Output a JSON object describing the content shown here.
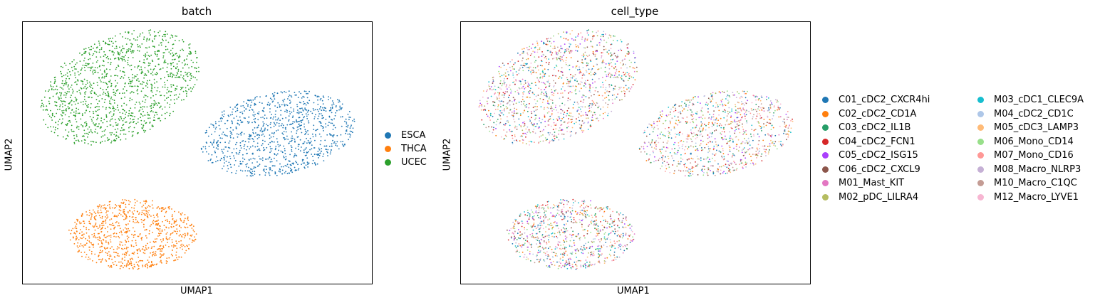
{
  "chart_data": [
    {
      "type": "scatter",
      "title": "batch",
      "xlabel": "UMAP1",
      "ylabel": "UMAP2",
      "grid": false,
      "legend_position": "right",
      "series": [
        {
          "name": "ESCA",
          "color": "#1f77b4",
          "n_points": 3000
        },
        {
          "name": "THCA",
          "color": "#ff7f0e",
          "n_points": 2600
        },
        {
          "name": "UCEC",
          "color": "#2ca02c",
          "n_points": 3800
        }
      ]
    },
    {
      "type": "scatter",
      "title": "cell_type",
      "xlabel": "UMAP1",
      "ylabel": "UMAP2",
      "grid": false,
      "legend_position": "right",
      "legend_columns": 2,
      "series": [
        {
          "name": "C01_cDC2_CXCR4hi",
          "color": "#1f77b4"
        },
        {
          "name": "C02_cDC2_CD1A",
          "color": "#ff7f0e"
        },
        {
          "name": "C03_cDC2_IL1B",
          "color": "#279e68"
        },
        {
          "name": "C04_cDC2_FCN1",
          "color": "#d62728"
        },
        {
          "name": "C05_cDC2_ISG15",
          "color": "#aa40fc"
        },
        {
          "name": "C06_cDC2_CXCL9",
          "color": "#8c564b"
        },
        {
          "name": "M01_Mast_KIT",
          "color": "#e377c2"
        },
        {
          "name": "M02_pDC_LILRA4",
          "color": "#b5bd61"
        },
        {
          "name": "M03_cDC1_CLEC9A",
          "color": "#17becf"
        },
        {
          "name": "M04_cDC2_CD1C",
          "color": "#aec7e8"
        },
        {
          "name": "M05_cDC3_LAMP3",
          "color": "#ffbb78"
        },
        {
          "name": "M06_Mono_CD14",
          "color": "#98df8a"
        },
        {
          "name": "M07_Mono_CD16",
          "color": "#ff9896"
        },
        {
          "name": "M08_Macro_NLRP3",
          "color": "#c5b0d5"
        },
        {
          "name": "M10_Macro_C1QC",
          "color": "#c49c94"
        },
        {
          "name": "M12_Macro_LYVE1",
          "color": "#f7b6d2"
        }
      ]
    }
  ]
}
